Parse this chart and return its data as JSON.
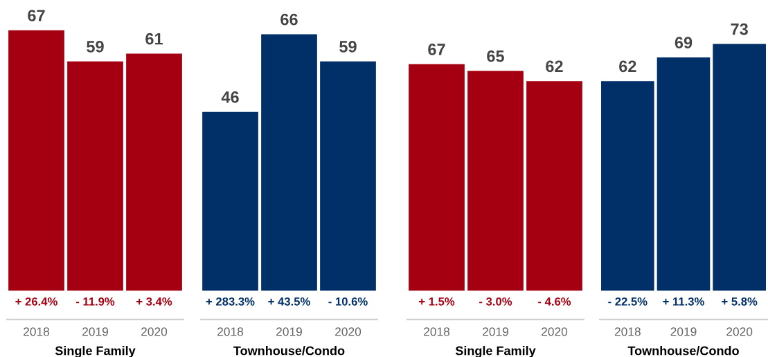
{
  "chart_data": [
    {
      "type": "bar",
      "categories": [
        "2018",
        "2019",
        "2020"
      ],
      "values": [
        67,
        59,
        61
      ],
      "color": "#a50012",
      "data_labels": true,
      "xlabel": "Single Family",
      "annotations": [
        "+ 26.4%",
        "- 11.9%",
        "+ 3.4%"
      ]
    },
    {
      "type": "bar",
      "categories": [
        "2018",
        "2019",
        "2020"
      ],
      "values": [
        46,
        66,
        59
      ],
      "color": "#003067",
      "data_labels": true,
      "xlabel": "Townhouse/Condo",
      "annotations": [
        "+ 283.3%",
        "+ 43.5%",
        "- 10.6%"
      ]
    },
    {
      "type": "bar",
      "categories": [
        "2018",
        "2019",
        "2020"
      ],
      "values": [
        67,
        65,
        62
      ],
      "color": "#a50012",
      "data_labels": true,
      "xlabel": "Single Family",
      "annotations": [
        "+ 1.5%",
        "- 3.0%",
        "- 4.6%"
      ]
    },
    {
      "type": "bar",
      "categories": [
        "2018",
        "2019",
        "2020"
      ],
      "values": [
        62,
        69,
        73
      ],
      "color": "#003067",
      "data_labels": true,
      "xlabel": "Townhouse/Condo",
      "annotations": [
        "- 22.5%",
        "+ 11.3%",
        "+ 5.8%"
      ]
    }
  ]
}
